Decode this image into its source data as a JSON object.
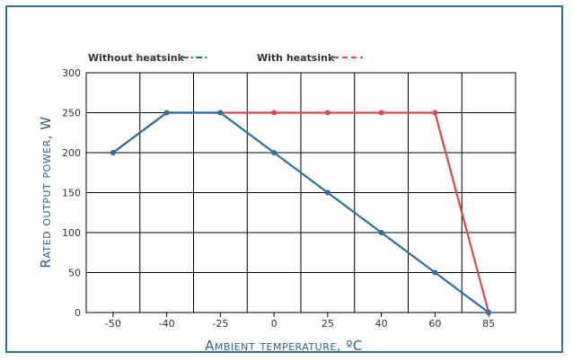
{
  "chart_data": {
    "type": "line",
    "title": "",
    "xlabel": "Ambient temperature, ºC",
    "ylabel": "Rated output power, W",
    "categories": [
      "-50",
      "-40",
      "-25",
      "0",
      "25",
      "40",
      "60",
      "85"
    ],
    "ylim": [
      0,
      300
    ],
    "yticks": [
      "0",
      "50",
      "100",
      "150",
      "200",
      "250",
      "300"
    ],
    "grid": true,
    "legend_placement": "top-left",
    "series": [
      {
        "name": "Without heatsink",
        "values": [
          200,
          250,
          250,
          200,
          150,
          100,
          50,
          0
        ],
        "color": "#2a6fa8",
        "dash": "dash-dot"
      },
      {
        "name": "With heatsink",
        "values": [
          200,
          250,
          250,
          250,
          250,
          250,
          250,
          0
        ],
        "color": "#e0474c",
        "dash": "dashed"
      }
    ]
  },
  "colors": {
    "frame": "#2f6e9e",
    "axis_title": "#2f5f88",
    "grid": "#000000"
  }
}
